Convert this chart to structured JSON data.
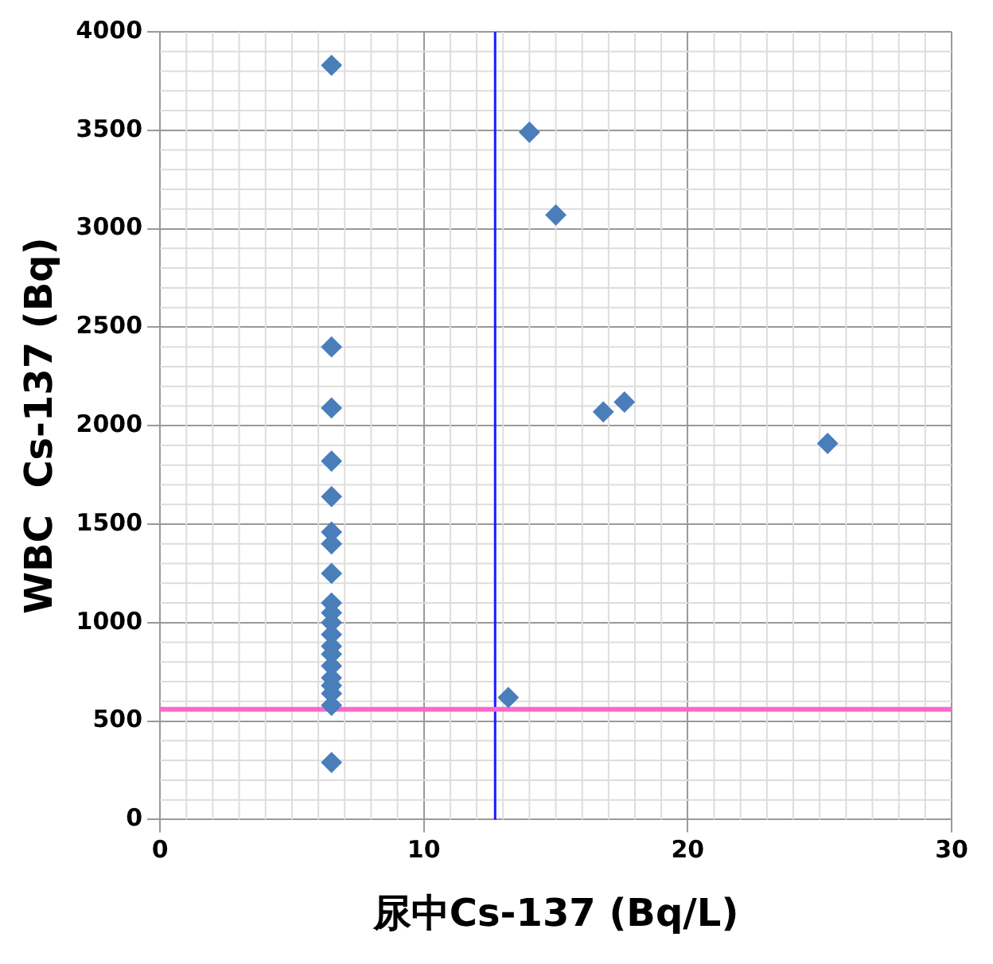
{
  "chart_data": {
    "type": "scatter",
    "xlabel": "尿中Cs-137 (Bq/L)",
    "ylabel": "WBC  Cs-137 (Bq)",
    "x": [
      6.5,
      6.5,
      6.5,
      6.5,
      6.5,
      6.5,
      6.5,
      6.5,
      6.5,
      6.5,
      6.5,
      6.5,
      6.5,
      6.5,
      6.5,
      6.5,
      6.5,
      6.5,
      6.5,
      6.5,
      14,
      15,
      16.8,
      17.6,
      25.3,
      13.2
    ],
    "series": [
      {
        "color": "#4a7ebb",
        "values": [
          3830,
          2400,
          2090,
          1820,
          1640,
          1460,
          1400,
          1250,
          1100,
          1050,
          1000,
          940,
          880,
          840,
          780,
          720,
          680,
          640,
          580,
          290,
          3490,
          3070,
          2070,
          2120,
          1910,
          620
        ]
      }
    ],
    "xlim": [
      0,
      30
    ],
    "xticks": [
      0,
      10,
      20,
      30
    ],
    "ylim": [
      0,
      4000
    ],
    "yticks": [
      0,
      500,
      1000,
      1500,
      2000,
      2500,
      3000,
      3500,
      4000
    ],
    "grid": true,
    "marker": "diamond",
    "legend": false,
    "ref_lines": [
      {
        "axis": "x",
        "value": 12.7,
        "color": "#1a1aff"
      },
      {
        "axis": "y",
        "value": 560,
        "color": "#ff66cc"
      }
    ]
  }
}
